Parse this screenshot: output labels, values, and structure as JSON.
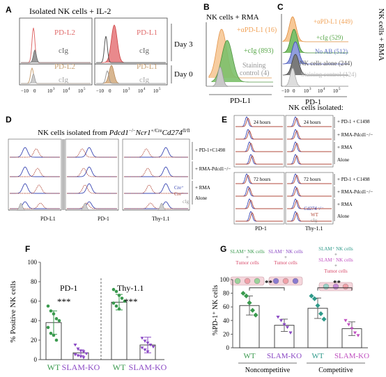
{
  "panels": {
    "A": {
      "letter": "A",
      "title": "Isolated NK cells + IL-2",
      "histograms": [
        {
          "label": "PD-L2",
          "color": "#e06b6b"
        },
        {
          "label": "cIg",
          "color": "#777777"
        },
        {
          "label": "PD-L1",
          "color": "#e06b6b"
        },
        {
          "label": "cIg",
          "color": "#777777"
        },
        {
          "label": "PD-L2",
          "color": "#c8a072"
        },
        {
          "label": "cIg",
          "color": "#aaaaaa"
        },
        {
          "label": "PD-L1",
          "color": "#c8a072"
        },
        {
          "label": "cIg",
          "color": "#aaaaaa"
        }
      ],
      "rows": [
        {
          "label": "Day 3"
        },
        {
          "label": "Day 0"
        }
      ],
      "x_ticks": [
        "−10",
        "0",
        "10",
        "3",
        "10",
        "4",
        "10",
        "5"
      ]
    },
    "B": {
      "letter": "B",
      "title": "NK cells + RMA",
      "legend": [
        {
          "label": "+αPD-L1 (16)",
          "color": "#f1a257"
        },
        {
          "label": "+cIg (893)",
          "color": "#5aa84b"
        },
        {
          "label": "Staining",
          "color": "#999999"
        },
        {
          "label": "control (4)",
          "color": "#999999"
        }
      ],
      "axis_label": "PD-L1"
    },
    "C": {
      "letter": "C",
      "side_title": "NK cells + RMA",
      "legend": [
        {
          "label": "+αPD-L1 (449)",
          "color": "#f1a257"
        },
        {
          "label": "+cIg (529)",
          "color": "#5aa84b"
        },
        {
          "label": "No AB (512)",
          "color": "#5c6fc2"
        },
        {
          "label": "NK cells alone (244)",
          "color": "#555555"
        },
        {
          "label": "Staining control (124)",
          "color": "#bbbbbb"
        }
      ],
      "axis_label": "PD-1"
    },
    "D": {
      "letter": "D",
      "title_plain": "NK cells isolated from ",
      "title_gene": "Pdcd1",
      "title_gene_sup": "−/−",
      "title_gene2": "Ncr1",
      "title_gene2_sup": "+/Cre",
      "title_gene3": "Cd274",
      "title_gene3_sup": "fl/fl",
      "row_labels": [
        "+ PD-1+C1498",
        "+ RMA-Pdcd1−/−",
        "+ RMA",
        "Alone"
      ],
      "legend": [
        {
          "label": "Cre⁺",
          "color": "#3b48b3"
        },
        {
          "label": "Cre⁻",
          "color": "#b24a3b"
        },
        {
          "label": "cIg",
          "color": "#999999"
        }
      ],
      "axis_labels": [
        "PD-L1",
        "PD-1",
        "Thy-1.1"
      ]
    },
    "E": {
      "letter": "E",
      "title": "NK cells isolated:",
      "time_labels": [
        "24 hours",
        "24 hours",
        "72 hours",
        "72 hours"
      ],
      "row_labels_top": [
        "+ PD-1 + C1498",
        "+ RMA-Pdcd1−/−",
        "+ RMA",
        "Alone"
      ],
      "row_labels_bottom": [
        "+ PD-1 + C1498",
        "+ RMA-Pdcd1−/−",
        "+ RMA",
        "Alone"
      ],
      "legend": [
        {
          "label": "Cd274⁻/⁻",
          "color": "#3b48b3"
        },
        {
          "label": "WT",
          "color": "#b24a3b"
        },
        {
          "label": "cIg",
          "color": "#999999"
        }
      ],
      "axis_labels": [
        "PD-1",
        "Thy-1.1"
      ]
    }
  },
  "panel_F": {
    "letter": "F",
    "ylabel": "% Positive NK cells",
    "y_ticks": [
      "0",
      "20",
      "40",
      "60",
      "80",
      "100"
    ],
    "groups": [
      {
        "title": "PD-1",
        "significance": "***"
      },
      {
        "title": "Thy-1.1",
        "significance": "***"
      }
    ],
    "x_labels": [
      {
        "label": "WT",
        "color": "#3a9a4e"
      },
      {
        "label": "SLAM-KO",
        "color": "#8a48c4"
      },
      {
        "label": "WT",
        "color": "#3a9a4e"
      },
      {
        "label": "SLAM-KO",
        "color": "#8a48c4"
      }
    ]
  },
  "panel_G": {
    "letter": "G",
    "ylabel": "%PD-1⁺ NK cells",
    "y_ticks": [
      "0",
      "20",
      "40",
      "60",
      "80",
      "100"
    ],
    "icons": [
      {
        "lines": [
          "SLAM⁺ NK cells",
          "+",
          "Tumor cells"
        ],
        "colors": [
          "#3a9a4e",
          "#555555",
          "#d84a6a"
        ]
      },
      {
        "lines": [
          "SLAM⁻ NK cells",
          "+",
          "Tumor cells"
        ],
        "colors": [
          "#8a48c4",
          "#555555",
          "#d84a6a"
        ]
      },
      {
        "lines": [
          "SLAM⁺ NK cells",
          "+",
          "SLAM⁻ NK cells",
          "+",
          "Tumor cells"
        ],
        "colors": [
          "#2f9a8a",
          "#555555",
          "#c050c0",
          "#555555",
          "#d84a6a"
        ]
      }
    ],
    "significance": [
      "**",
      "**"
    ],
    "x_labels": [
      {
        "label": "WT",
        "color": "#3a9a4e"
      },
      {
        "label": "SLAM-KO",
        "color": "#8a48c4"
      },
      {
        "label": "WT",
        "color": "#3a9a4e"
      },
      {
        "label": "SLAM-KO",
        "color": "#c050c0"
      }
    ],
    "group_labels": [
      "Noncompetitive",
      "Competitive"
    ]
  },
  "chart_data": [
    {
      "type": "bar",
      "panel": "F",
      "categories": [
        "WT",
        "SLAM-KO",
        "WT",
        "SLAM-KO"
      ],
      "values": [
        38,
        7,
        59,
        15
      ],
      "errors": [
        12,
        3,
        8,
        8
      ],
      "points": [
        [
          55,
          50,
          47,
          42,
          40,
          33,
          27,
          25,
          20
        ],
        [
          15,
          11,
          9,
          8,
          6,
          5,
          4,
          3,
          2
        ],
        [
          72,
          70,
          66,
          63,
          60,
          58,
          55,
          52
        ],
        [
          22,
          19,
          17,
          15,
          13,
          12,
          10,
          8
        ]
      ],
      "colors": [
        "#3a9a4e",
        "#8a48c4",
        "#3a9a4e",
        "#8a48c4"
      ],
      "xlabel": "",
      "ylabel": "% Positive NK cells",
      "ylim": [
        0,
        100
      ]
    },
    {
      "type": "bar",
      "panel": "G",
      "categories": [
        "WT",
        "SLAM-KO",
        "WT",
        "SLAM-KO"
      ],
      "values": [
        62,
        33,
        58,
        28
      ],
      "errors": [
        14,
        9,
        15,
        10
      ],
      "points": [
        [
          80,
          76,
          66,
          55,
          48
        ],
        [
          45,
          40,
          34,
          30,
          22
        ],
        [
          76,
          72,
          62,
          50,
          42
        ],
        [
          40,
          34,
          28,
          22,
          18
        ]
      ],
      "colors": [
        "#3a9a4e",
        "#8a48c4",
        "#2f9a8a",
        "#c050c0"
      ],
      "xlabel": "",
      "ylabel": "%PD-1⁺ NK cells",
      "ylim": [
        0,
        100
      ]
    }
  ]
}
